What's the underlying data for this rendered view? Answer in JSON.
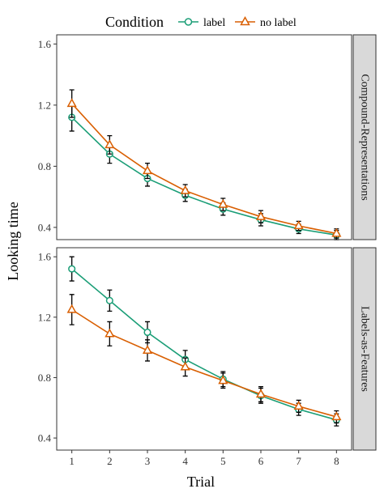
{
  "colors": {
    "label": "#1b9e77",
    "no_label": "#d95f02"
  },
  "legend": {
    "title": "Condition",
    "entries": [
      {
        "name": "label",
        "marker": "circle",
        "color": "#1b9e77"
      },
      {
        "name": "no label",
        "marker": "triangle",
        "color": "#d95f02"
      }
    ]
  },
  "chart_data": {
    "type": "line",
    "xlabel": "Trial",
    "ylabel": "Looking time",
    "x": [
      1,
      2,
      3,
      4,
      5,
      6,
      7,
      8
    ],
    "xticks": [
      "1",
      "2",
      "3",
      "4",
      "5",
      "6",
      "7",
      "8"
    ],
    "ylim": [
      0.32,
      1.66
    ],
    "yticks": [
      "0.4",
      "0.8",
      "1.2",
      "1.6"
    ],
    "grid": false,
    "legend_position": "top",
    "facets": [
      {
        "strip": "Compound-Representations",
        "series": [
          {
            "name": "label",
            "values": [
              1.12,
              0.88,
              0.72,
              0.61,
              0.52,
              0.45,
              0.39,
              0.35
            ],
            "err": [
              0.09,
              0.06,
              0.05,
              0.04,
              0.04,
              0.04,
              0.03,
              0.03
            ]
          },
          {
            "name": "no label",
            "values": [
              1.21,
              0.94,
              0.77,
              0.64,
              0.55,
              0.47,
              0.41,
              0.36
            ],
            "err": [
              0.09,
              0.06,
              0.05,
              0.04,
              0.04,
              0.04,
              0.03,
              0.03
            ]
          }
        ]
      },
      {
        "strip": "Labels-as-Features",
        "series": [
          {
            "name": "label",
            "values": [
              1.52,
              1.31,
              1.1,
              0.92,
              0.79,
              0.68,
              0.59,
              0.52
            ],
            "err": [
              0.08,
              0.07,
              0.07,
              0.06,
              0.05,
              0.05,
              0.04,
              0.04
            ]
          },
          {
            "name": "no label",
            "values": [
              1.25,
              1.09,
              0.98,
              0.87,
              0.78,
              0.69,
              0.61,
              0.54
            ],
            "err": [
              0.1,
              0.08,
              0.07,
              0.06,
              0.05,
              0.05,
              0.04,
              0.04
            ]
          }
        ]
      }
    ]
  }
}
